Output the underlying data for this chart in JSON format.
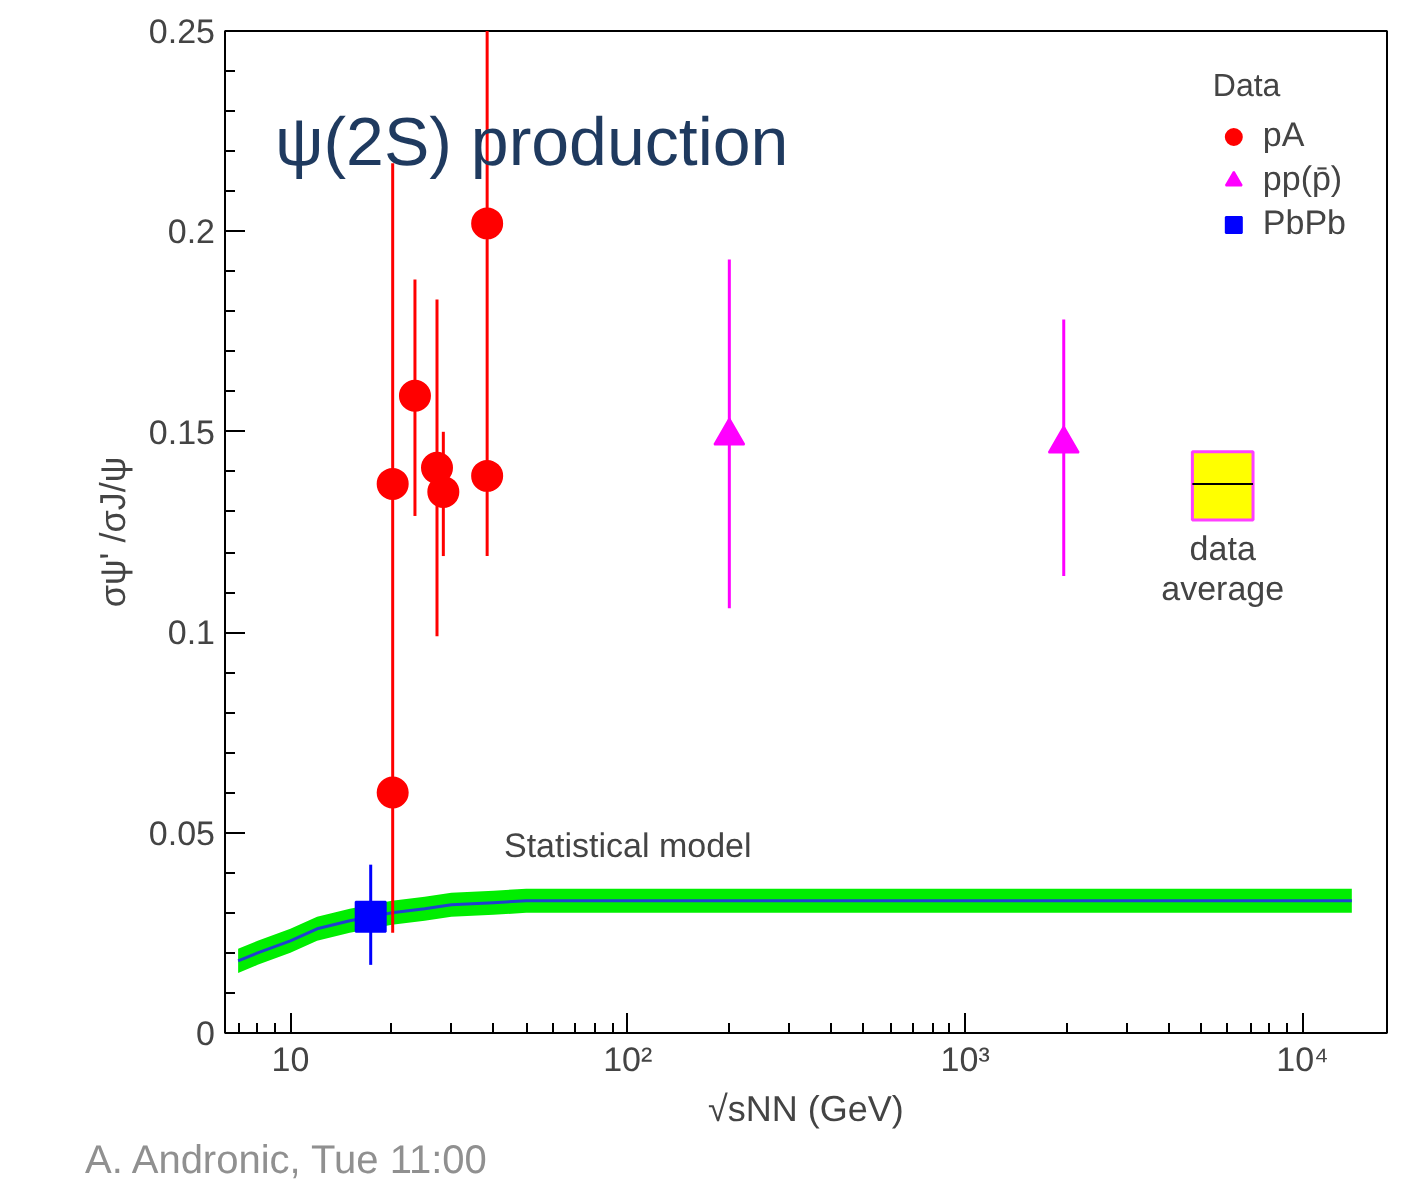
{
  "chart_data": {
    "type": "scatter",
    "title": "ψ(2S) production",
    "xlabel": "√sNN (GeV)",
    "ylabel": "σψ' /σJ/ψ",
    "legend_title": "Data",
    "annotations": [
      "A. Andronic, Tue 11:00"
    ],
    "log": "x",
    "grid": false,
    "legend": "top right",
    "xlim": [
      6.4,
      17800
    ],
    "xticks": [
      10,
      {
        "value": 100,
        "label": "10²"
      },
      {
        "value": 1000,
        "label": "10³"
      },
      {
        "value": 10000,
        "label": "10⁴"
      }
    ],
    "ylim": [
      0,
      0.25
    ],
    "yticks": [
      0,
      0.05,
      0.1,
      0.15,
      0.2,
      0.25
    ],
    "series": [
      {
        "name": "pA",
        "marker": "circle",
        "color": "#ff0000",
        "x": [
          20.1,
          20.1,
          23.4,
          27.2,
          28.4,
          38.3,
          38.3
        ],
        "values": [
          0.137,
          0.06,
          0.159,
          0.141,
          0.135,
          0.202,
          0.139
        ],
        "errors": [
          [
            0.025,
            0.217
          ],
          null,
          [
            0.129,
            0.188
          ],
          [
            0.099,
            0.183
          ],
          [
            0.119,
            0.15
          ],
          null,
          [
            0.119,
            0.25
          ]
        ]
      },
      {
        "name": "pp(p̄)",
        "type": "scatter",
        "marker": "triangle",
        "color": "#ff00ff",
        "x": [
          200,
          1960
        ],
        "values": [
          0.149,
          0.147
        ],
        "errors": [
          [
            0.106,
            0.193
          ],
          [
            0.114,
            0.178
          ]
        ]
      },
      {
        "name": "PbPb",
        "type": "scatter",
        "marker": "square",
        "color": "#0000ff",
        "x": [
          17.3
        ],
        "values": [
          0.029
        ],
        "errors": [
          [
            0.017,
            0.042
          ]
        ]
      },
      {
        "name": "Statistical model",
        "type": "line",
        "color": "#2040d0",
        "x": [
          7,
          8,
          10,
          12,
          15,
          17.3,
          20,
          25,
          30,
          40,
          50,
          100,
          1000,
          14000
        ],
        "values": [
          0.018,
          0.02,
          0.023,
          0.026,
          0.028,
          0.029,
          0.03,
          0.031,
          0.032,
          0.0325,
          0.033,
          0.033,
          0.033,
          0.033
        ],
        "lower": [
          0.015,
          0.017,
          0.02,
          0.023,
          0.025,
          0.026,
          0.027,
          0.028,
          0.029,
          0.0295,
          0.03,
          0.03,
          0.03,
          0.03
        ],
        "upper": [
          0.021,
          0.023,
          0.026,
          0.029,
          0.031,
          0.032,
          0.033,
          0.034,
          0.035,
          0.0355,
          0.036,
          0.036,
          0.036,
          0.036
        ]
      },
      {
        "name": "data average",
        "type": "box",
        "color": "#ffff00",
        "x": [
          5800
        ],
        "boxes": [
          {
            "low": 0.128,
            "q1": 0.128,
            "median": 0.137,
            "q3": 0.145,
            "high": 0.145
          }
        ]
      }
    ]
  }
}
